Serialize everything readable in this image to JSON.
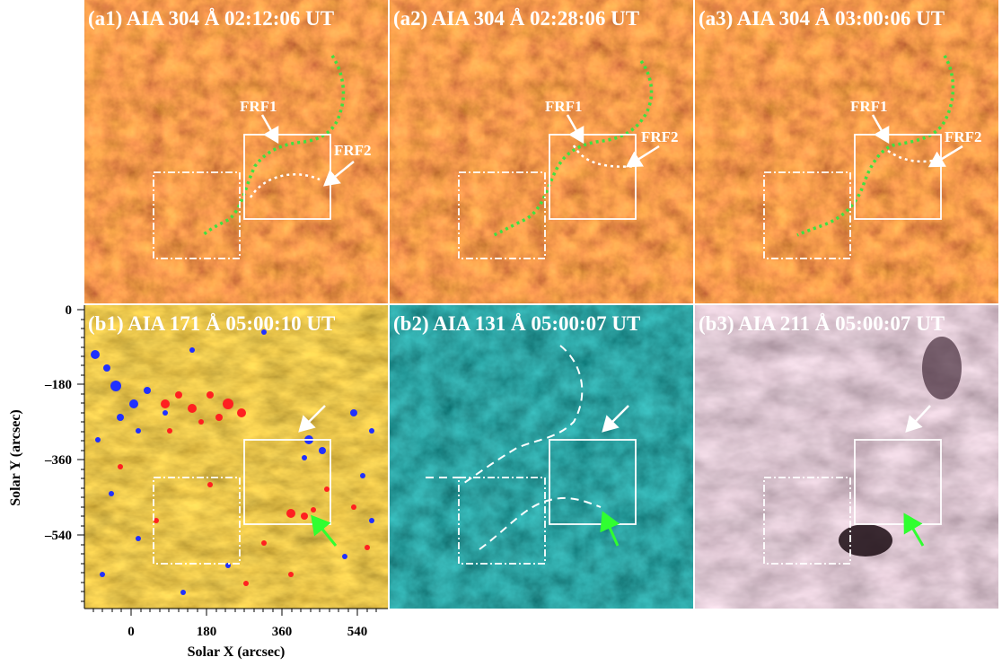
{
  "panels": {
    "a1": {
      "title": "(a1) AIA 304 Å  02:12:06 UT",
      "label_frf1": "FRF1",
      "label_frf2": "FRF2"
    },
    "a2": {
      "title": "(a2) AIA 304 Å  02:28:06 UT",
      "label_frf1": "FRF1",
      "label_frf2": "FRF2"
    },
    "a3": {
      "title": "(a3) AIA 304 Å  03:00:06 UT",
      "label_frf1": "FRF1",
      "label_frf2": "FRF2"
    },
    "b1": {
      "title": "(b1) AIA 171 Å  05:00:10 UT"
    },
    "b2": {
      "title": "(b2) AIA 131 Å  05:00:07 UT"
    },
    "b3": {
      "title": "(b3) AIA 211 Å  05:00:07 UT"
    }
  },
  "axes": {
    "xlabel": "Solar X (arcsec)",
    "ylabel": "Solar Y (arcsec)",
    "xticks": [
      "0",
      "180",
      "360",
      "540"
    ],
    "yticks": [
      "0",
      "–180",
      "–360",
      "–540"
    ]
  },
  "colors": {
    "aia304": "#a8300a",
    "aia171": "#b07a10",
    "aia131": "#0f5a5a",
    "aia211": "#7a4a60",
    "filament_trace": "#40e040",
    "arrow_green": "#30ff30",
    "positive_field": "#ff2020",
    "negative_field": "#2030ff"
  }
}
